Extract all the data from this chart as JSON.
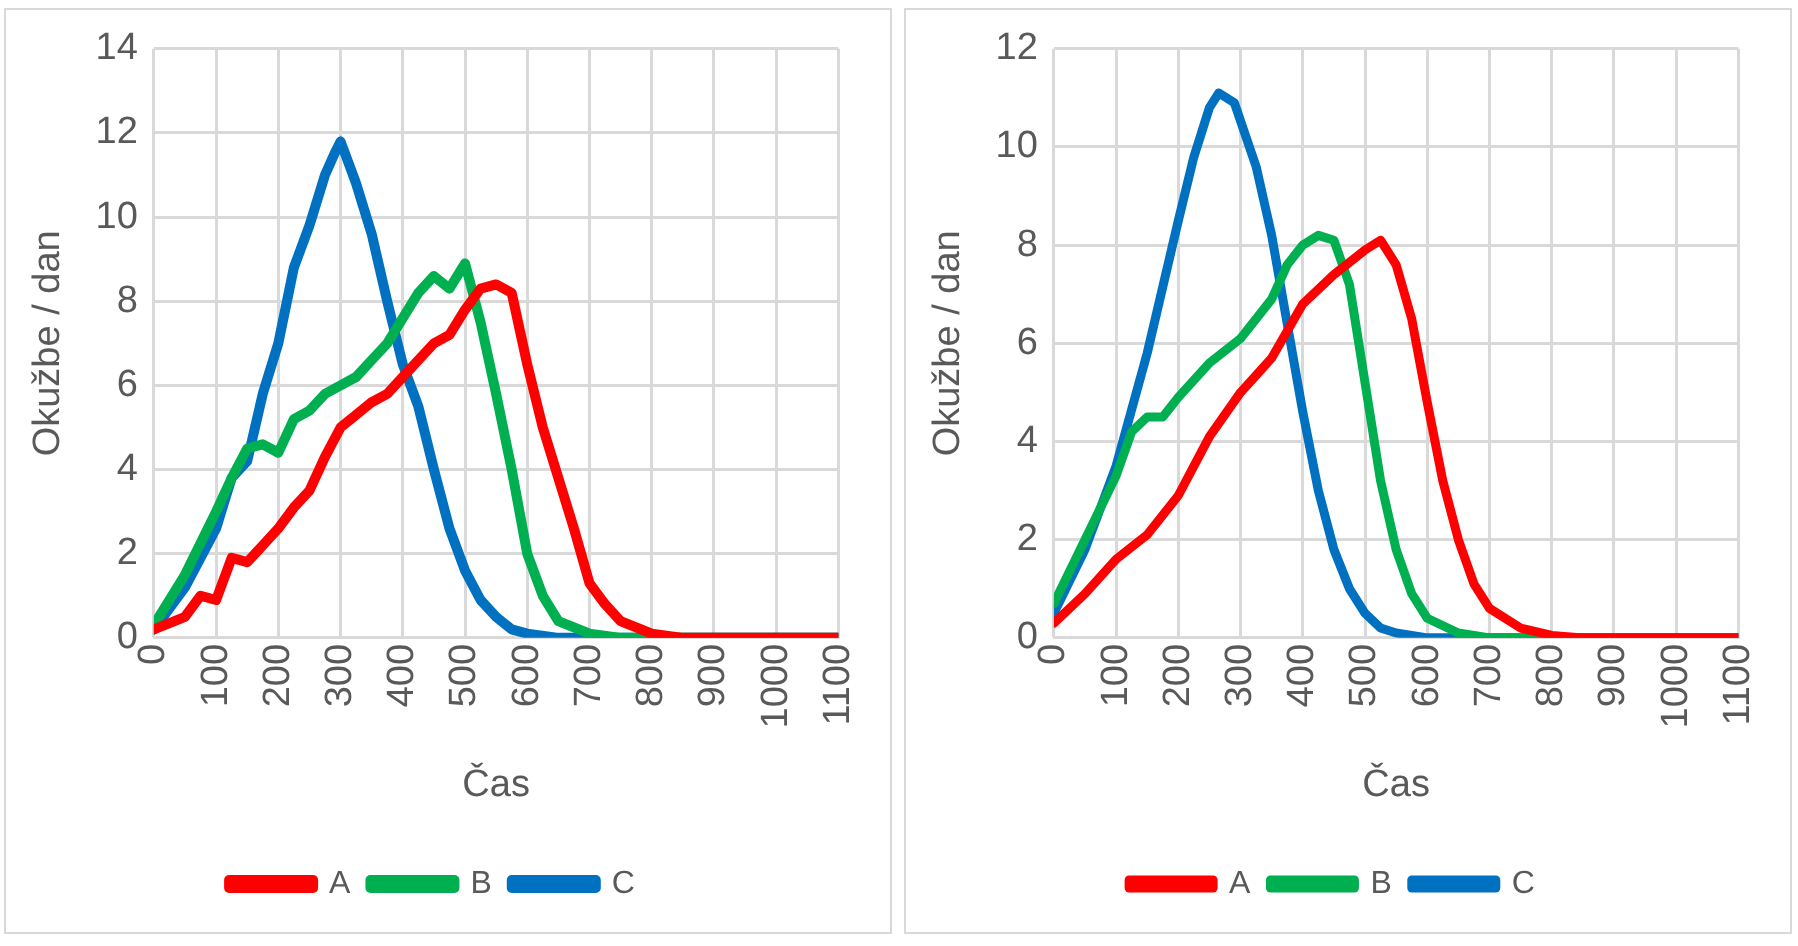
{
  "chart_data": [
    {
      "type": "line",
      "xlabel": "Čas",
      "ylabel": "Okužbe / dan",
      "xlim": [
        0,
        1100
      ],
      "xticks": [
        0,
        100,
        200,
        300,
        400,
        500,
        600,
        700,
        800,
        900,
        1000,
        1100
      ],
      "ylim": [
        0,
        14
      ],
      "yticks": [
        0,
        2,
        4,
        6,
        8,
        10,
        12,
        14
      ],
      "grid": true,
      "legend": "bottom",
      "marker": "none",
      "line_style": "solid",
      "series": [
        {
          "name": "A",
          "color": "#ff0000",
          "x": [
            0,
            50,
            75,
            100,
            125,
            150,
            175,
            200,
            225,
            250,
            275,
            300,
            325,
            350,
            375,
            400,
            425,
            450,
            475,
            500,
            525,
            550,
            575,
            600,
            625,
            650,
            675,
            700,
            725,
            750,
            800,
            850,
            1100
          ],
          "values": [
            0.2,
            0.5,
            1.0,
            0.9,
            1.9,
            1.8,
            2.2,
            2.6,
            3.1,
            3.5,
            4.3,
            5.0,
            5.3,
            5.6,
            5.8,
            6.2,
            6.6,
            7.0,
            7.2,
            7.8,
            8.3,
            8.4,
            8.2,
            6.5,
            5.0,
            3.8,
            2.6,
            1.3,
            0.8,
            0.4,
            0.1,
            0,
            0
          ]
        },
        {
          "name": "B",
          "color": "#00b050",
          "x": [
            0,
            50,
            100,
            125,
            150,
            175,
            200,
            225,
            250,
            275,
            300,
            325,
            350,
            375,
            400,
            425,
            450,
            475,
            500,
            525,
            550,
            575,
            600,
            625,
            650,
            700,
            750,
            1100
          ],
          "values": [
            0.3,
            1.5,
            3.0,
            3.8,
            4.5,
            4.6,
            4.4,
            5.2,
            5.4,
            5.8,
            6.0,
            6.2,
            6.6,
            7.0,
            7.6,
            8.2,
            8.6,
            8.3,
            8.9,
            7.5,
            5.8,
            4.0,
            2.0,
            1.0,
            0.4,
            0.1,
            0,
            0
          ]
        },
        {
          "name": "C",
          "color": "#0070c0",
          "x": [
            0,
            50,
            100,
            125,
            150,
            175,
            200,
            225,
            250,
            275,
            290,
            300,
            325,
            350,
            375,
            400,
            425,
            450,
            475,
            500,
            525,
            550,
            575,
            600,
            650,
            1100
          ],
          "values": [
            0.2,
            1.2,
            2.6,
            3.8,
            4.2,
            5.8,
            7.0,
            8.8,
            9.8,
            11.0,
            11.5,
            11.8,
            10.8,
            9.6,
            8.0,
            6.5,
            5.5,
            4.0,
            2.6,
            1.6,
            0.9,
            0.5,
            0.2,
            0.1,
            0,
            0
          ]
        }
      ]
    },
    {
      "type": "line",
      "xlabel": "Čas",
      "ylabel": "Okužbe / dan",
      "xlim": [
        0,
        1100
      ],
      "xticks": [
        0,
        100,
        200,
        300,
        400,
        500,
        600,
        700,
        800,
        900,
        1000,
        1100
      ],
      "ylim": [
        0,
        12
      ],
      "yticks": [
        0,
        2,
        4,
        6,
        8,
        10,
        12
      ],
      "grid": true,
      "legend": "bottom",
      "marker": "none",
      "line_style": "solid",
      "series": [
        {
          "name": "A",
          "color": "#ff0000",
          "x": [
            0,
            50,
            100,
            150,
            200,
            250,
            300,
            350,
            400,
            450,
            500,
            525,
            550,
            575,
            600,
            625,
            650,
            675,
            700,
            750,
            800,
            850,
            1100
          ],
          "values": [
            0.3,
            0.9,
            1.6,
            2.1,
            2.9,
            4.1,
            5.0,
            5.7,
            6.8,
            7.4,
            7.9,
            8.1,
            7.6,
            6.5,
            4.8,
            3.2,
            2.0,
            1.1,
            0.6,
            0.2,
            0.05,
            0,
            0
          ]
        },
        {
          "name": "B",
          "color": "#00b050",
          "x": [
            0,
            50,
            100,
            125,
            150,
            175,
            200,
            250,
            300,
            350,
            375,
            400,
            425,
            450,
            475,
            500,
            525,
            550,
            575,
            600,
            650,
            700,
            1100
          ],
          "values": [
            0.7,
            2.0,
            3.3,
            4.2,
            4.5,
            4.5,
            4.9,
            5.6,
            6.1,
            6.9,
            7.6,
            8.0,
            8.2,
            8.1,
            7.2,
            5.2,
            3.2,
            1.8,
            0.9,
            0.4,
            0.1,
            0,
            0
          ]
        },
        {
          "name": "C",
          "color": "#0070c0",
          "x": [
            0,
            50,
            100,
            150,
            200,
            225,
            250,
            265,
            290,
            325,
            350,
            375,
            400,
            425,
            450,
            475,
            500,
            525,
            550,
            600,
            1100
          ],
          "values": [
            0.5,
            1.8,
            3.5,
            5.8,
            8.5,
            9.8,
            10.8,
            11.1,
            10.9,
            9.6,
            8.2,
            6.4,
            4.6,
            3.0,
            1.8,
            1.0,
            0.5,
            0.2,
            0.1,
            0,
            0
          ]
        }
      ]
    }
  ]
}
